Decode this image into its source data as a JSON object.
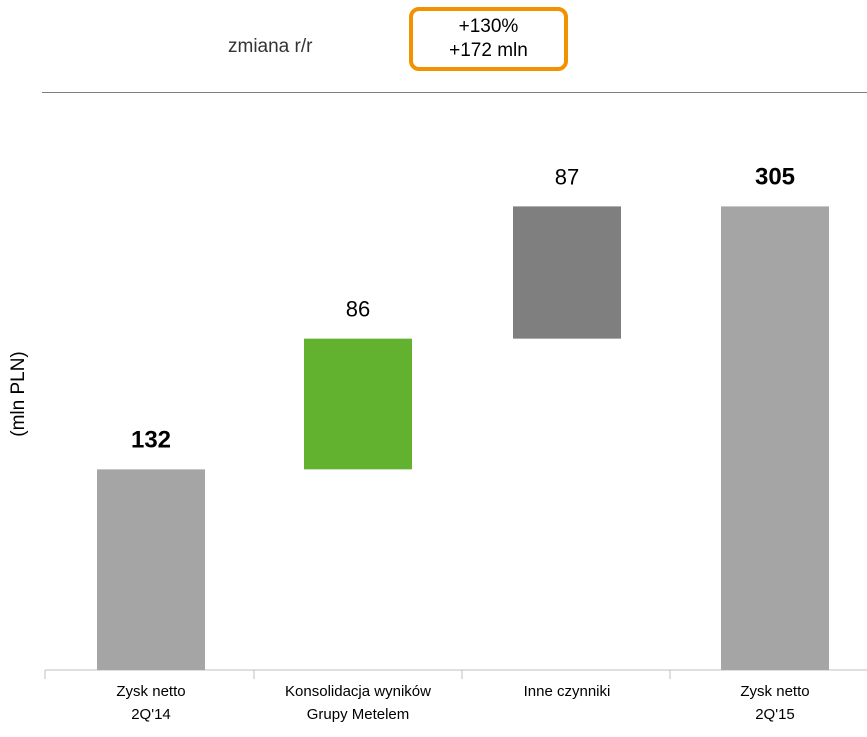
{
  "header": {
    "change_label": "zmiana r/r",
    "change_line1": "+130%",
    "change_line2": "+172 mln"
  },
  "colors": {
    "total": "#A5A5A5",
    "increase_consolidation": "#62B22F",
    "increase_other": "#7F7F7F",
    "highlight_box": "#F39200"
  },
  "chart_data": {
    "type": "bar",
    "subtype": "waterfall",
    "ylabel": "(mln PLN)",
    "xlabel": "",
    "ylim": [
      0,
      330
    ],
    "grid": false,
    "legend": "none",
    "categories": [
      [
        "Zysk netto",
        "2Q'14"
      ],
      [
        "Konsolidacja wyników",
        "Grupy Metelem"
      ],
      [
        "Inne czynniki"
      ],
      [
        "Zysk netto",
        "2Q'15"
      ]
    ],
    "bars": [
      {
        "kind": "total",
        "base": 0,
        "value": 132,
        "label": "132",
        "bold": true,
        "color": "#A5A5A5"
      },
      {
        "kind": "delta",
        "base": 132,
        "value": 86,
        "label": "86",
        "bold": false,
        "color": "#62B22F"
      },
      {
        "kind": "delta",
        "base": 218,
        "value": 87,
        "label": "87",
        "bold": false,
        "color": "#7F7F7F"
      },
      {
        "kind": "total",
        "base": 0,
        "value": 305,
        "label": "305",
        "bold": true,
        "color": "#A5A5A5"
      }
    ]
  }
}
